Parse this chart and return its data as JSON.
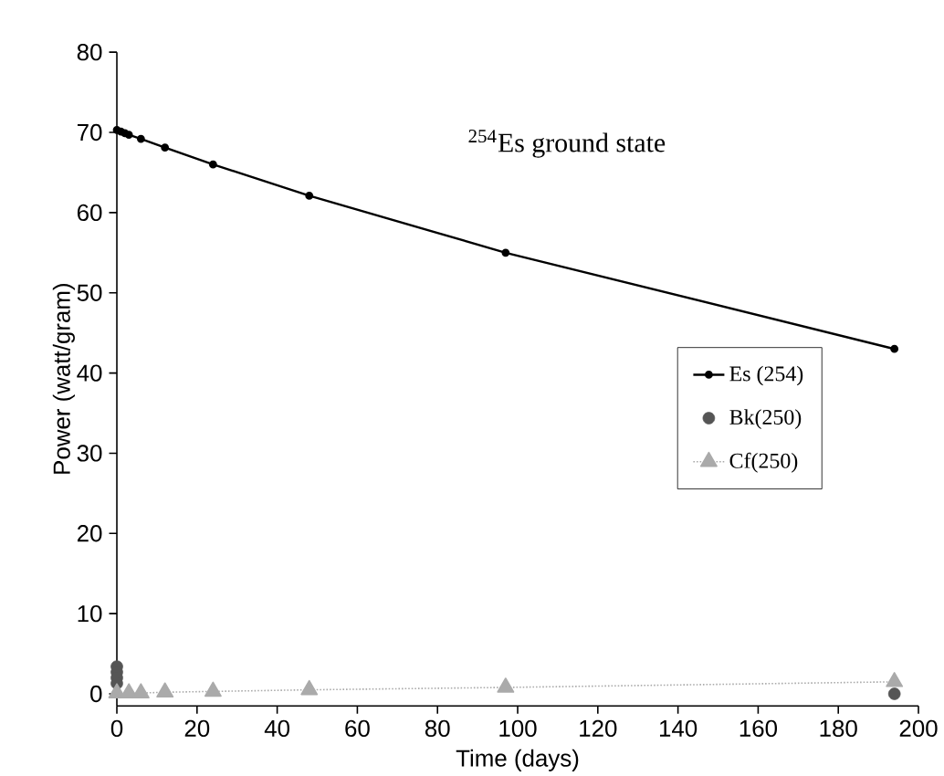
{
  "chart_data": {
    "type": "line",
    "xlabel": "Time (days)",
    "ylabel": "Power (watt/gram)",
    "annotations": [
      "$^{254}$Es  ground state"
    ],
    "xlim": [
      0,
      200
    ],
    "xticks": [
      0,
      20,
      40,
      60,
      80,
      100,
      120,
      140,
      160,
      180,
      200
    ],
    "ylim": [
      -1.5,
      80
    ],
    "yticks": [
      0,
      10,
      20,
      30,
      40,
      50,
      60,
      70,
      80
    ],
    "grid": false,
    "legend": "right",
    "series": [
      {
        "name": "Es (254)",
        "color": "#000000",
        "marker": "circle",
        "line_style": "solid",
        "x": [
          0,
          1,
          2,
          3,
          6,
          12,
          24,
          48,
          97,
          194
        ],
        "values": [
          70.3,
          70.1,
          69.9,
          69.7,
          69.2,
          68.1,
          66.0,
          62.1,
          55.0,
          43.0
        ]
      },
      {
        "name": "Bk(250)",
        "color": "#555555",
        "type": "scatter",
        "marker": "circle",
        "x": [
          0,
          0,
          0,
          0,
          194
        ],
        "values": [
          3.4,
          2.7,
          2.0,
          1.3,
          0.0
        ]
      },
      {
        "name": "Cf(250)",
        "color": "#aaaaaa",
        "type": "line",
        "marker": "triangle",
        "line_style": "dotted",
        "x": [
          0,
          3,
          6,
          12,
          24,
          48,
          97,
          194
        ],
        "values": [
          0.1,
          0.1,
          0.1,
          0.2,
          0.3,
          0.5,
          0.8,
          1.5
        ]
      }
    ]
  }
}
